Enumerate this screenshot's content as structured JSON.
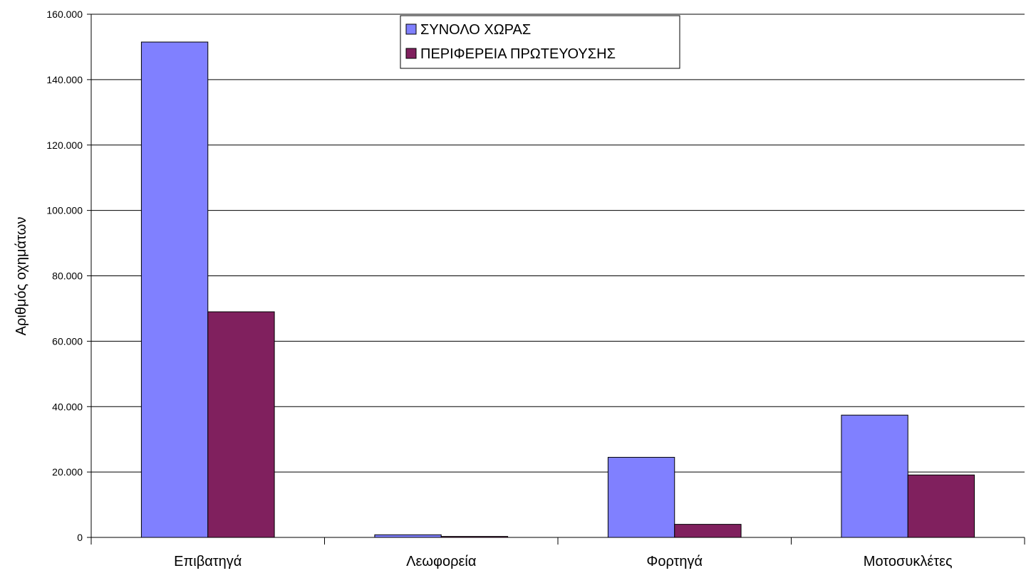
{
  "chart_data": {
    "type": "bar",
    "title": "",
    "xlabel": "",
    "ylabel": "Αριθμός οχημάτων",
    "categories": [
      "Επιβατηγά",
      "Λεωφορεία",
      "Φορτηγά",
      "Μοτοσυκλέτες"
    ],
    "series": [
      {
        "name": "ΣΥΝΟΛΟ ΧΩΡΑΣ",
        "color": "#8080ff",
        "values": [
          151500,
          800,
          24500,
          37400
        ]
      },
      {
        "name": "ΠΕΡΙΦΕΡΕΙΑ ΠΡΩΤΕΥΟΥΣΗΣ",
        "color": "#80205e",
        "values": [
          69000,
          300,
          4000,
          19100
        ]
      }
    ],
    "ylim": [
      0,
      160000
    ],
    "yticks": [
      0,
      20000,
      40000,
      60000,
      80000,
      100000,
      120000,
      140000,
      160000
    ],
    "ytick_labels": [
      "0",
      "20.000",
      "40.000",
      "60.000",
      "80.000",
      "100.000",
      "120.000",
      "140.000",
      "160.000"
    ],
    "grid": true,
    "legend_position": "top-center"
  }
}
